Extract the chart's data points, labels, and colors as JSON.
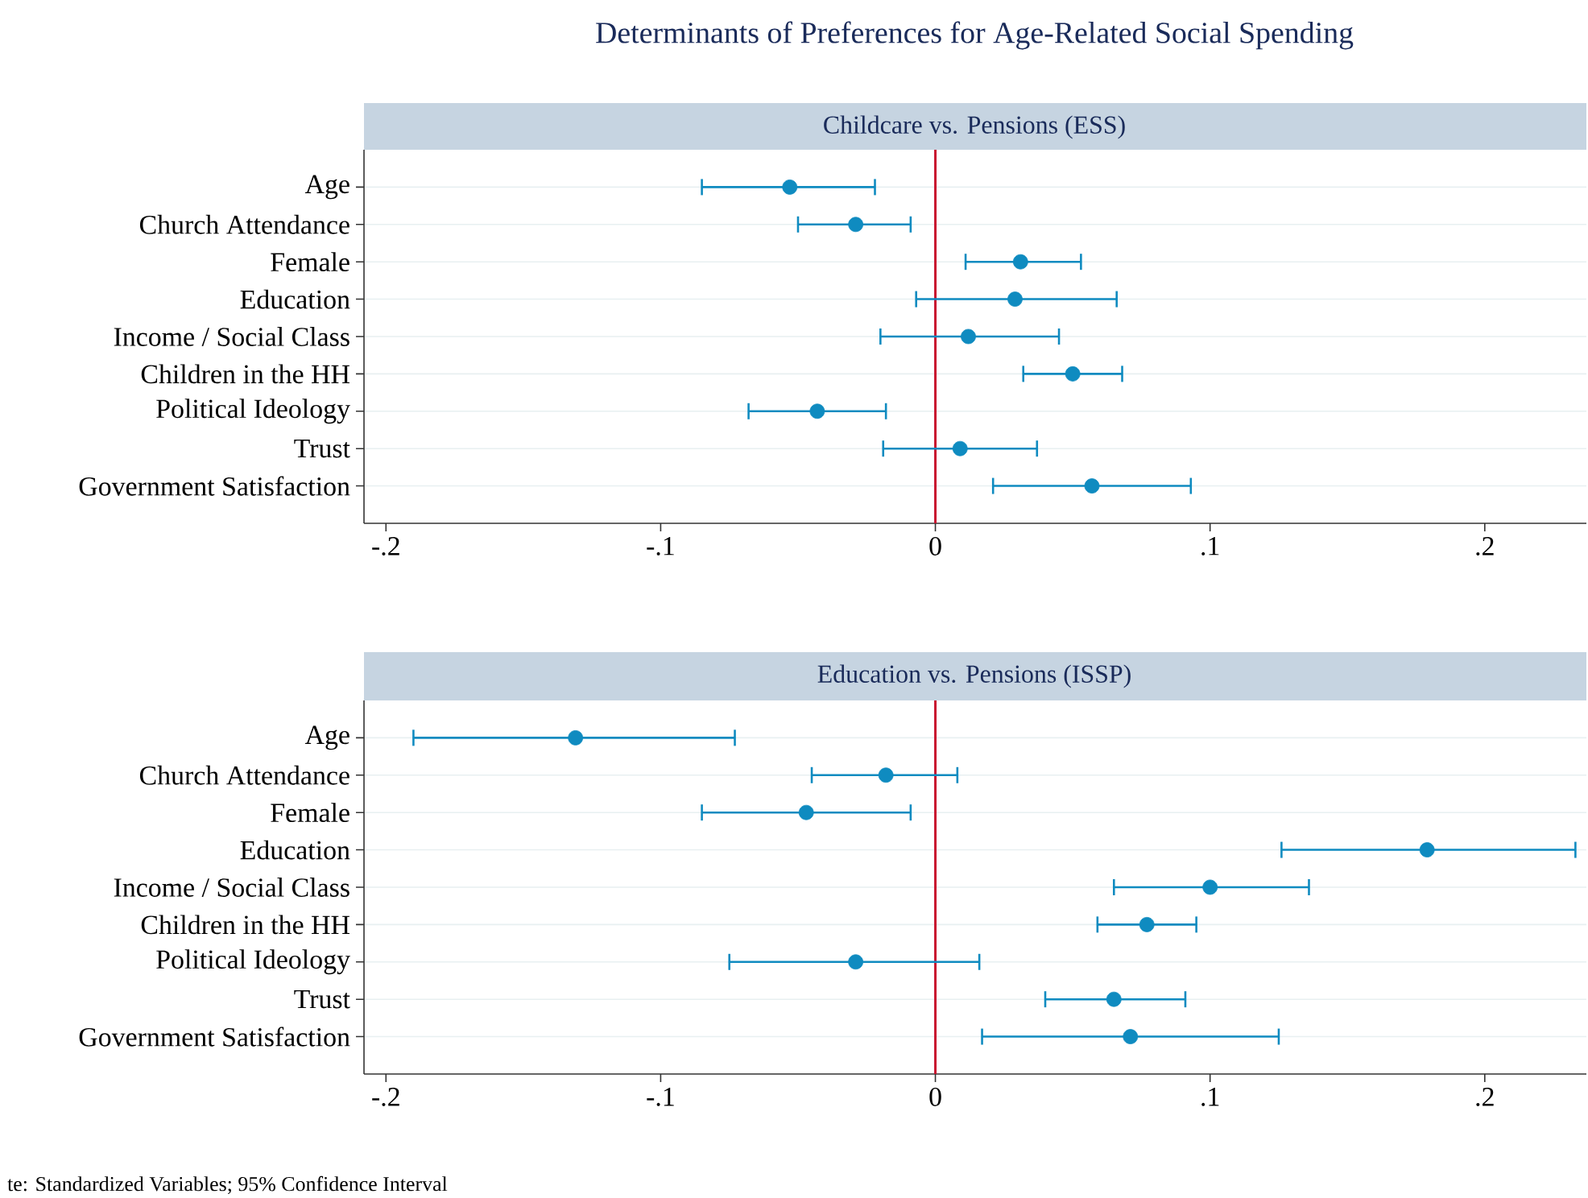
{
  "chart_data": [
    {
      "type": "scatter",
      "title": "Determinants of Preferences for Age-Related Social Spending",
      "subtitle": "Childcare vs. Pensions (ESS)",
      "orientation": "horizontal",
      "categories": [
        "Age",
        "Church Attendance",
        "Female",
        "Education",
        "Income / Social Class",
        "Children in the HH",
        "Political Ideology",
        "Trust",
        "Government Satisfaction"
      ],
      "values": [
        -0.053,
        -0.029,
        0.031,
        0.029,
        0.012,
        0.05,
        -0.043,
        0.009,
        0.057
      ],
      "errors": [
        [
          -0.085,
          -0.022
        ],
        [
          -0.05,
          -0.009
        ],
        [
          0.011,
          0.053
        ],
        [
          -0.007,
          0.066
        ],
        [
          -0.02,
          0.045
        ],
        [
          0.032,
          0.068
        ],
        [
          -0.068,
          -0.018
        ],
        [
          -0.019,
          0.037
        ],
        [
          0.021,
          0.093
        ]
      ],
      "color": "#0f8bc0",
      "marker": "circle",
      "grid": "y",
      "xlim": [
        -0.208,
        0.237
      ],
      "xticks": [
        {
          "value": -0.2,
          "label": "-.2"
        },
        {
          "value": -0.1,
          "label": "-.1"
        },
        0,
        {
          "value": 0.1,
          "label": ".1"
        },
        {
          "value": 0.2,
          "label": ".2"
        }
      ],
      "ref_lines": [
        {
          "axis": "x",
          "value": 0,
          "color": "#c8102e"
        }
      ]
    },
    {
      "type": "scatter",
      "title": "Education vs. Pensions (ISSP)",
      "orientation": "horizontal",
      "categories": [
        "Age",
        "Church Attendance",
        "Female",
        "Education",
        "Income / Social Class",
        "Children in the HH",
        "Political Ideology",
        "Trust",
        "Government Satisfaction"
      ],
      "values": [
        -0.131,
        -0.018,
        -0.047,
        0.179,
        0.1,
        0.077,
        -0.029,
        0.065,
        0.071
      ],
      "errors": [
        [
          -0.19,
          -0.073
        ],
        [
          -0.045,
          0.008
        ],
        [
          -0.085,
          -0.009
        ],
        [
          0.126,
          0.233
        ],
        [
          0.065,
          0.136
        ],
        [
          0.059,
          0.095
        ],
        [
          -0.075,
          0.016
        ],
        [
          0.04,
          0.091
        ],
        [
          0.017,
          0.125
        ]
      ],
      "color": "#0f8bc0",
      "marker": "circle",
      "grid": "y",
      "xlim": [
        -0.208,
        0.237
      ],
      "xticks": [
        {
          "value": -0.2,
          "label": "-.2"
        },
        {
          "value": -0.1,
          "label": "-.1"
        },
        0,
        {
          "value": 0.1,
          "label": ".1"
        },
        {
          "value": 0.2,
          "label": ".2"
        }
      ],
      "ref_lines": [
        {
          "axis": "x",
          "value": 0,
          "color": "#c8102e"
        }
      ],
      "annotations": [
        "te: Standardized Variables; 95% Confidence Interval"
      ]
    }
  ]
}
